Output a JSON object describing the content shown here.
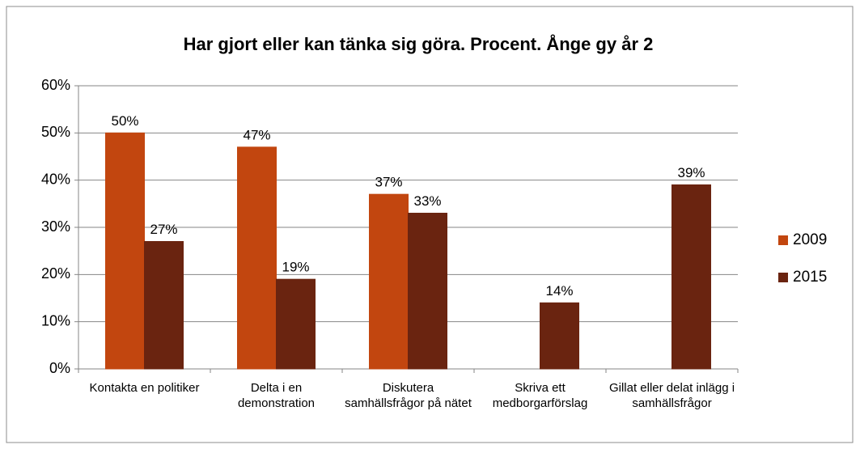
{
  "chart_data": {
    "type": "bar",
    "title": "Har gjort eller kan tänka sig göra. Procent. Ånge gy år 2",
    "categories": [
      "Kontakta en politiker",
      "Delta i en demonstration",
      "Diskutera samhällsfrågor på nätet",
      "Skriva ett medborgarförslag",
      "Gillat eller delat inlägg i samhällsfrågor"
    ],
    "series": [
      {
        "name": "2009",
        "color": "#c2460f",
        "values": [
          50,
          47,
          37,
          null,
          null
        ],
        "value_labels": [
          "50%",
          "47%",
          "37%",
          null,
          null
        ]
      },
      {
        "name": "2015",
        "color": "#6a2410",
        "values": [
          27,
          19,
          33,
          14,
          39
        ],
        "value_labels": [
          "27%",
          "19%",
          "33%",
          "14%",
          "39%"
        ]
      }
    ],
    "ylim": [
      0,
      60
    ],
    "yticks": [
      {
        "value": 0,
        "label": "0%"
      },
      {
        "value": 10,
        "label": "10%"
      },
      {
        "value": 20,
        "label": "20%"
      },
      {
        "value": 30,
        "label": "30%"
      },
      {
        "value": 40,
        "label": "40%"
      },
      {
        "value": 50,
        "label": "50%"
      },
      {
        "value": 60,
        "label": "60%"
      }
    ],
    "grid": true,
    "legend": "right"
  }
}
